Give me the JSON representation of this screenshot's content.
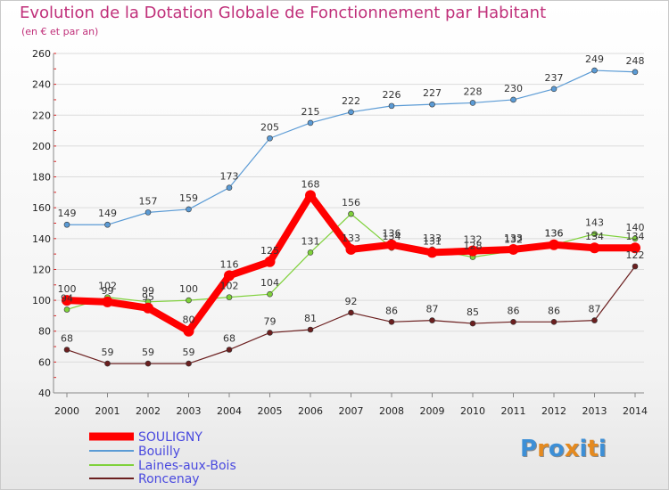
{
  "chart_data": {
    "type": "line",
    "title": "Evolution de la Dotation Globale de Fonctionnement par Habitant",
    "subtitle": "(en € et par an)",
    "xlabel": "",
    "ylabel": "",
    "ylim": [
      40,
      260
    ],
    "yticks": [
      40,
      60,
      80,
      100,
      120,
      140,
      160,
      180,
      200,
      220,
      240,
      260
    ],
    "x": [
      "2000",
      "2001",
      "2002",
      "2003",
      "2004",
      "2005",
      "2006",
      "2007",
      "2008",
      "2009",
      "2010",
      "2011",
      "2012",
      "2013",
      "2014"
    ],
    "grid": "horizontal",
    "legend_position": "bottom-left",
    "series": [
      {
        "name": "SOULIGNY",
        "color": "#ff0000",
        "values": [
          100,
          99,
          95,
          80,
          116,
          125,
          168,
          133,
          136,
          131,
          132,
          133,
          136,
          134,
          134
        ]
      },
      {
        "name": "Bouilly",
        "color": "#5b9bd5",
        "values": [
          149,
          149,
          157,
          159,
          173,
          205,
          215,
          222,
          226,
          227,
          228,
          230,
          237,
          249,
          248
        ]
      },
      {
        "name": "Laines-aux-Bois",
        "color": "#7fd13b",
        "values": [
          94,
          102,
          99,
          100,
          102,
          104,
          131,
          156,
          134,
          133,
          128,
          132,
          136,
          143,
          140
        ]
      },
      {
        "name": "Roncenay",
        "color": "#6b1f1f",
        "values": [
          68,
          59,
          59,
          59,
          68,
          79,
          81,
          92,
          86,
          87,
          85,
          86,
          86,
          87,
          122
        ]
      }
    ]
  },
  "logo": {
    "text": "Proxiti",
    "letters": [
      "P",
      "r",
      "o",
      "x",
      "i",
      "t",
      "i"
    ],
    "colors": [
      "#3d8fd6",
      "#e58a1f",
      "#3d8fd6",
      "#e58a1f",
      "#3d8fd6",
      "#e58a1f",
      "#3d8fd6"
    ]
  }
}
